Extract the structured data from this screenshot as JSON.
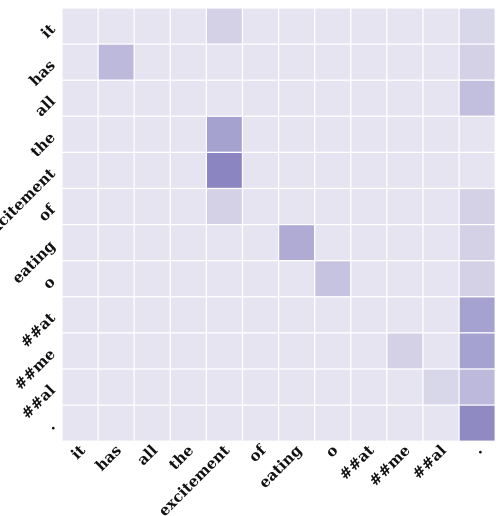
{
  "chart_data": {
    "type": "heatmap",
    "title": "",
    "xlabel": "",
    "ylabel": "",
    "x_tokens": [
      "it",
      "has",
      "all",
      "the",
      "excitement",
      "of",
      "eating",
      "o",
      "##at",
      "##me",
      "##al",
      "."
    ],
    "y_tokens": [
      "it",
      "has",
      "all",
      "the",
      "excitement",
      "of",
      "eating",
      "o",
      "##at",
      "##me",
      "##al",
      "."
    ],
    "value_range": [
      0,
      1
    ],
    "colors": {
      "low": "#e6e4f0",
      "high": "#8b85c1",
      "grid": "#ffffff"
    },
    "values": [
      [
        0.0,
        0.0,
        0.0,
        0.0,
        0.2,
        0.0,
        0.0,
        0.0,
        0.0,
        0.0,
        0.0,
        0.15
      ],
      [
        0.0,
        0.45,
        0.0,
        0.0,
        0.0,
        0.0,
        0.0,
        0.0,
        0.0,
        0.0,
        0.0,
        0.2
      ],
      [
        0.0,
        0.0,
        0.0,
        0.0,
        0.0,
        0.0,
        0.0,
        0.0,
        0.0,
        0.0,
        0.0,
        0.4
      ],
      [
        0.0,
        0.0,
        0.0,
        0.0,
        0.7,
        0.0,
        0.0,
        0.0,
        0.0,
        0.0,
        0.0,
        0.0
      ],
      [
        0.0,
        0.0,
        0.0,
        0.0,
        1.0,
        0.0,
        0.0,
        0.0,
        0.0,
        0.0,
        0.0,
        0.0
      ],
      [
        0.0,
        0.0,
        0.0,
        0.0,
        0.2,
        0.0,
        0.0,
        0.0,
        0.0,
        0.0,
        0.0,
        0.2
      ],
      [
        0.0,
        0.0,
        0.0,
        0.0,
        0.0,
        0.0,
        0.6,
        0.0,
        0.0,
        0.0,
        0.0,
        0.2
      ],
      [
        0.0,
        0.0,
        0.0,
        0.0,
        0.0,
        0.0,
        0.0,
        0.35,
        0.0,
        0.0,
        0.0,
        0.2
      ],
      [
        0.0,
        0.0,
        0.0,
        0.0,
        0.0,
        0.0,
        0.0,
        0.0,
        0.0,
        0.0,
        0.0,
        0.7
      ],
      [
        0.0,
        0.0,
        0.0,
        0.0,
        0.0,
        0.0,
        0.0,
        0.0,
        0.0,
        0.2,
        0.0,
        0.7
      ],
      [
        0.0,
        0.0,
        0.0,
        0.0,
        0.0,
        0.0,
        0.0,
        0.0,
        0.0,
        0.0,
        0.15,
        0.45
      ],
      [
        0.0,
        0.0,
        0.0,
        0.0,
        0.0,
        0.0,
        0.0,
        0.0,
        0.0,
        0.0,
        0.0,
        0.95
      ]
    ]
  }
}
